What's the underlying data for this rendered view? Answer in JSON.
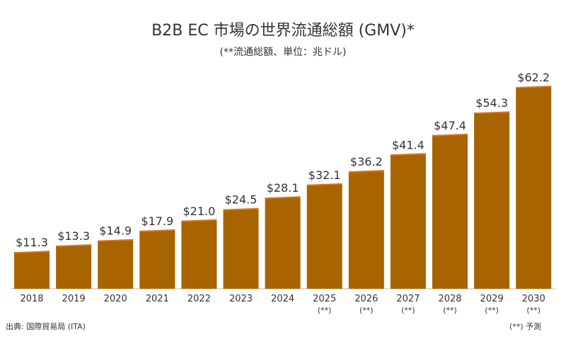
{
  "chart_data": {
    "type": "bar",
    "title": "B2B EC 市場の世界流通総額 (GMV)*",
    "subtitle": "(**流通総額、単位：兆ドル)",
    "categories": [
      "2018",
      "2019",
      "2020",
      "2021",
      "2022",
      "2023",
      "2024",
      "2025",
      "2026",
      "2027",
      "2028",
      "2029",
      "2030"
    ],
    "category_notes": [
      null,
      null,
      null,
      null,
      null,
      null,
      null,
      "(**)",
      "(**)",
      "(**)",
      "(**)",
      "(**)",
      "(**)"
    ],
    "values": [
      11.3,
      13.3,
      14.9,
      17.9,
      21.0,
      24.5,
      28.1,
      32.1,
      36.2,
      41.4,
      47.4,
      54.3,
      62.2
    ],
    "value_labels": [
      "$11.3",
      "$13.3",
      "$14.9",
      "$17.9",
      "$21.0",
      "$24.5",
      "$28.1",
      "$32.1",
      "$36.2",
      "$41.4",
      "$47.4",
      "$54.3",
      "$62.2"
    ],
    "color": "#a86400",
    "source": "出典: 国際貿易局 (ITA)",
    "footnote": "(**) 予測"
  }
}
